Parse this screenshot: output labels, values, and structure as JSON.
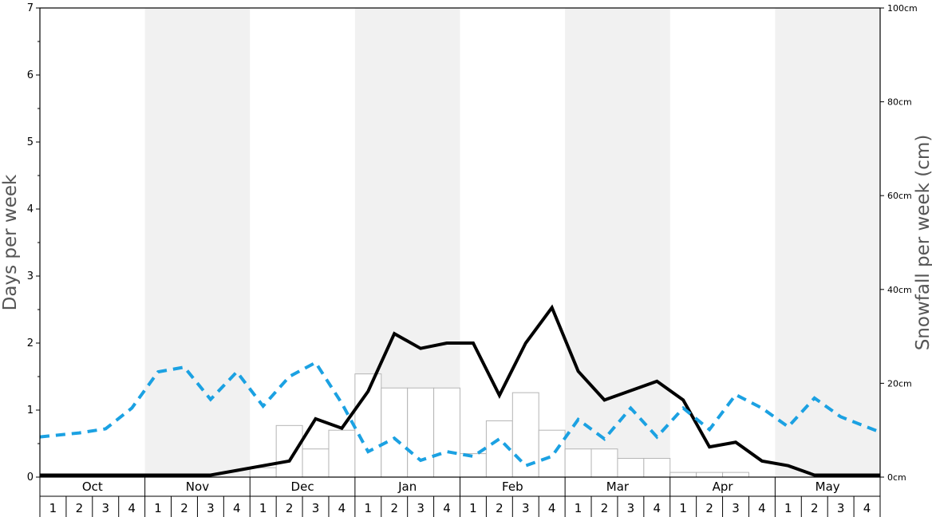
{
  "chart_data": {
    "type": "bar",
    "ylabel_left": "Days per week",
    "ylabel_right": "Snowfall per week (cm)",
    "ylim_left": [
      0,
      7
    ],
    "ylim_right": [
      0,
      100
    ],
    "yticks_left": [
      "0",
      "1",
      "2",
      "3",
      "4",
      "5",
      "6",
      "7"
    ],
    "yticks_right": [
      "0cm",
      "20cm",
      "40cm",
      "60cm",
      "80cm",
      "100cm"
    ],
    "months": [
      "Oct",
      "Nov",
      "Dec",
      "Jan",
      "Feb",
      "Mar",
      "Apr",
      "May"
    ],
    "weeks": [
      "1",
      "2",
      "3",
      "4"
    ],
    "shaded_months": [
      "Nov",
      "Jan",
      "Mar",
      "May"
    ],
    "series": [
      {
        "kind": "bar",
        "axis": "right",
        "values": [
          0,
          0,
          0,
          0,
          0,
          0,
          0,
          0,
          2,
          11,
          6,
          10,
          22,
          19,
          19,
          19,
          5,
          12,
          18,
          10,
          6,
          6,
          4,
          4,
          1,
          1,
          1,
          0,
          0,
          0,
          0,
          0
        ]
      },
      {
        "kind": "line",
        "style": "solid",
        "color": "#000000",
        "axis": "left",
        "values": [
          0.03,
          0.03,
          0.03,
          0.03,
          0.03,
          0.03,
          0.03,
          0.1,
          0.17,
          0.24,
          0.87,
          0.73,
          1.28,
          2.14,
          1.92,
          2.0,
          2.0,
          1.22,
          2.0,
          2.53,
          1.58,
          1.15,
          1.29,
          1.43,
          1.15,
          0.45,
          0.52,
          0.24,
          0.17,
          0.03,
          0.03,
          0.03
        ]
      },
      {
        "kind": "line",
        "style": "dashed",
        "color": "#1ba1e2",
        "axis": "left",
        "values": [
          0.6,
          0.66,
          0.72,
          1.03,
          1.57,
          1.64,
          1.16,
          1.57,
          1.06,
          1.5,
          1.71,
          1.1,
          0.38,
          0.58,
          0.25,
          0.38,
          0.31,
          0.57,
          0.17,
          0.31,
          0.86,
          0.57,
          1.03,
          0.6,
          1.03,
          0.71,
          1.23,
          1.03,
          0.75,
          1.18,
          0.9,
          0.67
        ]
      }
    ]
  }
}
